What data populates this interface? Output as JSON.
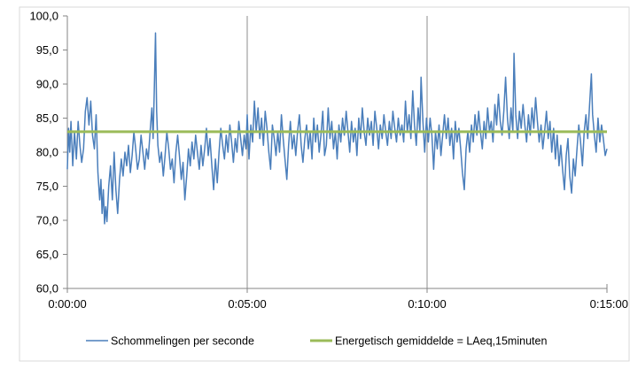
{
  "chart_data": {
    "type": "line",
    "title": "",
    "xlabel": "",
    "ylabel": "",
    "x_unit": "seconds",
    "xlim": [
      0,
      900
    ],
    "ylim": [
      60,
      100
    ],
    "yticks": [
      "60,0",
      "65,0",
      "70,0",
      "75,0",
      "80,0",
      "85,0",
      "90,0",
      "95,0",
      "100,0"
    ],
    "xticks": [
      "0:00:00",
      "0:05:00",
      "0:10:00",
      "0:15:00"
    ],
    "grid": "vertical gridlines at 0:05:00 and 0:10:00",
    "legend_position": "bottom",
    "colors": {
      "series": "#4a7ebb",
      "average": "#9bbb59",
      "axis": "#868686",
      "grid": "#8c8c8c"
    },
    "series": [
      {
        "name": "Schommelingen per seconde",
        "points": [
          [
            0,
            77.5
          ],
          [
            2,
            83.5
          ],
          [
            4,
            80
          ],
          [
            6,
            84.5
          ],
          [
            9,
            78
          ],
          [
            12,
            83
          ],
          [
            15,
            79
          ],
          [
            18,
            84.5
          ],
          [
            21,
            81
          ],
          [
            24,
            78.5
          ],
          [
            27,
            80.5
          ],
          [
            30,
            86
          ],
          [
            33,
            88
          ],
          [
            36,
            84
          ],
          [
            39,
            87.5
          ],
          [
            42,
            82.5
          ],
          [
            45,
            80.5
          ],
          [
            48,
            85.5
          ],
          [
            51,
            77
          ],
          [
            54,
            73
          ],
          [
            56,
            76
          ],
          [
            58,
            71
          ],
          [
            60,
            74.5
          ],
          [
            62,
            69.5
          ],
          [
            64,
            72
          ],
          [
            66,
            69.8
          ],
          [
            69,
            75
          ],
          [
            72,
            78
          ],
          [
            75,
            73
          ],
          [
            78,
            80
          ],
          [
            81,
            74.5
          ],
          [
            84,
            71
          ],
          [
            87,
            76
          ],
          [
            90,
            79
          ],
          [
            93,
            76.5
          ],
          [
            96,
            80
          ],
          [
            99,
            78
          ],
          [
            102,
            81
          ],
          [
            105,
            77
          ],
          [
            108,
            79.5
          ],
          [
            111,
            83
          ],
          [
            114,
            80.5
          ],
          [
            117,
            77.5
          ],
          [
            120,
            79
          ],
          [
            123,
            82.5
          ],
          [
            126,
            80
          ],
          [
            129,
            77.5
          ],
          [
            132,
            80.5
          ],
          [
            135,
            79
          ],
          [
            138,
            83
          ],
          [
            141,
            86.5
          ],
          [
            143,
            82
          ],
          [
            145,
            89
          ],
          [
            147,
            97.5
          ],
          [
            149,
            86
          ],
          [
            151,
            81
          ],
          [
            154,
            78.5
          ],
          [
            157,
            80
          ],
          [
            160,
            76.5
          ],
          [
            163,
            79.5
          ],
          [
            166,
            83
          ],
          [
            169,
            80.5
          ],
          [
            172,
            77.5
          ],
          [
            175,
            79
          ],
          [
            178,
            75.5
          ],
          [
            181,
            80
          ],
          [
            184,
            82.5
          ],
          [
            187,
            79.5
          ],
          [
            190,
            76
          ],
          [
            193,
            78.5
          ],
          [
            196,
            73
          ],
          [
            199,
            76.5
          ],
          [
            202,
            80.5
          ],
          [
            205,
            78
          ],
          [
            208,
            81.5
          ],
          [
            211,
            79
          ],
          [
            214,
            82.5
          ],
          [
            217,
            80
          ],
          [
            220,
            77.5
          ],
          [
            223,
            81
          ],
          [
            226,
            78
          ],
          [
            229,
            80.5
          ],
          [
            232,
            83.5
          ],
          [
            235,
            79.5
          ],
          [
            238,
            82
          ],
          [
            241,
            78
          ],
          [
            244,
            74.5
          ],
          [
            247,
            79
          ],
          [
            250,
            75.5
          ],
          [
            253,
            80
          ],
          [
            256,
            83.5
          ],
          [
            259,
            81
          ],
          [
            262,
            79
          ],
          [
            265,
            82.5
          ],
          [
            268,
            80
          ],
          [
            271,
            84
          ],
          [
            274,
            81.5
          ],
          [
            277,
            78.5
          ],
          [
            280,
            82
          ],
          [
            283,
            80
          ],
          [
            286,
            84.5
          ],
          [
            289,
            82
          ],
          [
            292,
            79.5
          ],
          [
            295,
            82.5
          ],
          [
            298,
            80.5
          ],
          [
            300,
            85.5
          ],
          [
            303,
            79
          ],
          [
            306,
            84
          ],
          [
            309,
            81.5
          ],
          [
            312,
            87.5
          ],
          [
            315,
            83
          ],
          [
            318,
            86.5
          ],
          [
            321,
            82
          ],
          [
            324,
            85
          ],
          [
            327,
            81
          ],
          [
            330,
            86
          ],
          [
            333,
            83.5
          ],
          [
            336,
            80
          ],
          [
            339,
            77.5
          ],
          [
            342,
            84
          ],
          [
            345,
            82
          ],
          [
            348,
            79.5
          ],
          [
            351,
            83
          ],
          [
            354,
            80
          ],
          [
            357,
            85.5
          ],
          [
            360,
            82
          ],
          [
            363,
            79
          ],
          [
            366,
            76
          ],
          [
            369,
            81
          ],
          [
            372,
            84.5
          ],
          [
            375,
            80.5
          ],
          [
            378,
            82.5
          ],
          [
            381,
            79.5
          ],
          [
            384,
            83
          ],
          [
            387,
            85.5
          ],
          [
            390,
            81
          ],
          [
            393,
            78.5
          ],
          [
            396,
            82
          ],
          [
            399,
            84
          ],
          [
            402,
            80.5
          ],
          [
            405,
            83
          ],
          [
            408,
            79
          ],
          [
            411,
            85
          ],
          [
            414,
            81.5
          ],
          [
            417,
            84
          ],
          [
            420,
            80
          ],
          [
            423,
            82.5
          ],
          [
            426,
            86
          ],
          [
            429,
            79.5
          ],
          [
            432,
            81
          ],
          [
            435,
            86.5
          ],
          [
            438,
            82
          ],
          [
            441,
            84.5
          ],
          [
            444,
            80.5
          ],
          [
            447,
            83
          ],
          [
            450,
            79
          ],
          [
            453,
            84
          ],
          [
            456,
            81.5
          ],
          [
            459,
            85
          ],
          [
            462,
            82.5
          ],
          [
            465,
            86
          ],
          [
            468,
            83
          ],
          [
            471,
            80
          ],
          [
            474,
            84.5
          ],
          [
            477,
            81.5
          ],
          [
            480,
            83.5
          ],
          [
            483,
            79.5
          ],
          [
            486,
            85
          ],
          [
            489,
            82
          ],
          [
            492,
            86.5
          ],
          [
            495,
            83
          ],
          [
            498,
            81
          ],
          [
            501,
            85
          ],
          [
            504,
            82.5
          ],
          [
            507,
            84.5
          ],
          [
            510,
            81
          ],
          [
            513,
            86
          ],
          [
            516,
            83.5
          ],
          [
            519,
            80.5
          ],
          [
            522,
            84
          ],
          [
            525,
            82
          ],
          [
            528,
            85.5
          ],
          [
            531,
            83
          ],
          [
            534,
            81
          ],
          [
            537,
            84.5
          ],
          [
            540,
            82
          ],
          [
            543,
            86
          ],
          [
            546,
            83.5
          ],
          [
            549,
            81.5
          ],
          [
            552,
            85
          ],
          [
            555,
            82.5
          ],
          [
            558,
            84
          ],
          [
            561,
            81.5
          ],
          [
            564,
            87.5
          ],
          [
            567,
            83
          ],
          [
            570,
            85.5
          ],
          [
            573,
            82
          ],
          [
            576,
            89
          ],
          [
            579,
            84
          ],
          [
            582,
            81
          ],
          [
            585,
            86.5
          ],
          [
            588,
            83
          ],
          [
            590,
            91
          ],
          [
            593,
            84.5
          ],
          [
            596,
            80
          ],
          [
            599,
            85
          ],
          [
            602,
            81.5
          ],
          [
            605,
            85
          ],
          [
            608,
            82.5
          ],
          [
            611,
            77.5
          ],
          [
            614,
            83
          ],
          [
            617,
            80.5
          ],
          [
            620,
            84
          ],
          [
            623,
            79.5
          ],
          [
            626,
            82.5
          ],
          [
            629,
            85.5
          ],
          [
            632,
            82
          ],
          [
            635,
            85
          ],
          [
            638,
            81
          ],
          [
            641,
            83.5
          ],
          [
            644,
            79
          ],
          [
            647,
            84.5
          ],
          [
            650,
            81.5
          ],
          [
            653,
            83.5
          ],
          [
            656,
            80.5
          ],
          [
            659,
            77
          ],
          [
            662,
            74.5
          ],
          [
            665,
            80.5
          ],
          [
            668,
            83
          ],
          [
            671,
            80
          ],
          [
            674,
            84
          ],
          [
            677,
            81.5
          ],
          [
            680,
            85.5
          ],
          [
            683,
            82.5
          ],
          [
            686,
            86
          ],
          [
            689,
            83
          ],
          [
            692,
            80.5
          ],
          [
            695,
            84.5
          ],
          [
            698,
            82
          ],
          [
            701,
            86.5
          ],
          [
            704,
            83
          ],
          [
            707,
            84.5
          ],
          [
            710,
            81.5
          ],
          [
            713,
            87
          ],
          [
            716,
            84
          ],
          [
            719,
            88.5
          ],
          [
            722,
            84.5
          ],
          [
            725,
            82.5
          ],
          [
            728,
            86
          ],
          [
            731,
            91
          ],
          [
            734,
            85
          ],
          [
            737,
            82
          ],
          [
            740,
            86.5
          ],
          [
            743,
            83
          ],
          [
            745,
            94.5
          ],
          [
            748,
            85.5
          ],
          [
            751,
            82
          ],
          [
            754,
            86
          ],
          [
            757,
            83.5
          ],
          [
            760,
            87
          ],
          [
            763,
            84
          ],
          [
            766,
            81.5
          ],
          [
            769,
            85.5
          ],
          [
            772,
            82.5
          ],
          [
            775,
            86.5
          ],
          [
            778,
            83.5
          ],
          [
            781,
            88
          ],
          [
            784,
            84.5
          ],
          [
            787,
            81.5
          ],
          [
            790,
            84
          ],
          [
            793,
            80.5
          ],
          [
            796,
            83
          ],
          [
            799,
            86
          ],
          [
            802,
            82
          ],
          [
            805,
            84.5
          ],
          [
            808,
            80
          ],
          [
            811,
            83.5
          ],
          [
            814,
            79
          ],
          [
            817,
            82.5
          ],
          [
            820,
            78
          ],
          [
            823,
            81
          ],
          [
            826,
            77.5
          ],
          [
            829,
            74.5
          ],
          [
            832,
            79.5
          ],
          [
            835,
            82
          ],
          [
            838,
            76.5
          ],
          [
            841,
            74
          ],
          [
            844,
            79
          ],
          [
            847,
            76.5
          ],
          [
            850,
            80.5
          ],
          [
            853,
            84
          ],
          [
            856,
            81.5
          ],
          [
            859,
            78
          ],
          [
            862,
            83
          ],
          [
            865,
            85.5
          ],
          [
            868,
            82
          ],
          [
            871,
            87
          ],
          [
            874,
            91.5
          ],
          [
            876,
            85.5
          ],
          [
            879,
            82.5
          ],
          [
            882,
            80
          ],
          [
            885,
            85
          ],
          [
            888,
            81.5
          ],
          [
            891,
            84
          ],
          [
            894,
            82
          ],
          [
            897,
            79.5
          ],
          [
            900,
            80.5
          ]
        ]
      },
      {
        "name": "Energetisch gemiddelde = LAeq,15minuten",
        "points": [
          [
            0,
            83
          ],
          [
            900,
            83
          ]
        ]
      }
    ]
  }
}
